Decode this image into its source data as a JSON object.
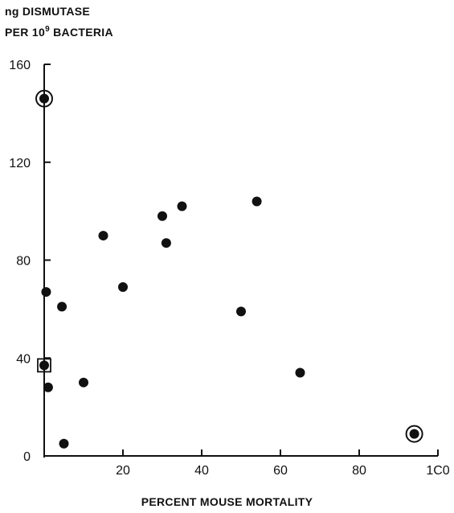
{
  "chart_data": {
    "type": "scatter",
    "ylabel_lines": [
      "ng DISMUTASE",
      "PER 10",
      "9",
      " BACTERIA"
    ],
    "xlabel": "PERCENT MOUSE MORTALITY",
    "xlim": [
      0,
      100
    ],
    "ylim": [
      0,
      160
    ],
    "x_ticks": [
      {
        "value": 20,
        "label": "20"
      },
      {
        "value": 40,
        "label": "40"
      },
      {
        "value": 60,
        "label": "60"
      },
      {
        "value": 80,
        "label": "80"
      },
      {
        "value": 100,
        "label": "1C0"
      }
    ],
    "y_ticks": [
      {
        "value": 0,
        "label": "0"
      },
      {
        "value": 40,
        "label": "40"
      },
      {
        "value": 80,
        "label": "80"
      },
      {
        "value": 120,
        "label": "120"
      },
      {
        "value": 160,
        "label": "160"
      }
    ],
    "grid": false,
    "points": [
      {
        "x": 0,
        "y": 146,
        "marker": "circled"
      },
      {
        "x": 0.5,
        "y": 67,
        "marker": "dot"
      },
      {
        "x": 0,
        "y": 37,
        "marker": "boxed"
      },
      {
        "x": 1,
        "y": 28,
        "marker": "dot"
      },
      {
        "x": 4.5,
        "y": 61,
        "marker": "dot"
      },
      {
        "x": 5,
        "y": 5,
        "marker": "dot"
      },
      {
        "x": 10,
        "y": 30,
        "marker": "dot"
      },
      {
        "x": 15,
        "y": 90,
        "marker": "dot"
      },
      {
        "x": 20,
        "y": 69,
        "marker": "dot"
      },
      {
        "x": 30,
        "y": 98,
        "marker": "dot"
      },
      {
        "x": 31,
        "y": 87,
        "marker": "dot"
      },
      {
        "x": 35,
        "y": 102,
        "marker": "dot"
      },
      {
        "x": 50,
        "y": 59,
        "marker": "dot"
      },
      {
        "x": 54,
        "y": 104,
        "marker": "dot"
      },
      {
        "x": 65,
        "y": 34,
        "marker": "dot"
      },
      {
        "x": 94,
        "y": 9,
        "marker": "circled"
      }
    ]
  }
}
